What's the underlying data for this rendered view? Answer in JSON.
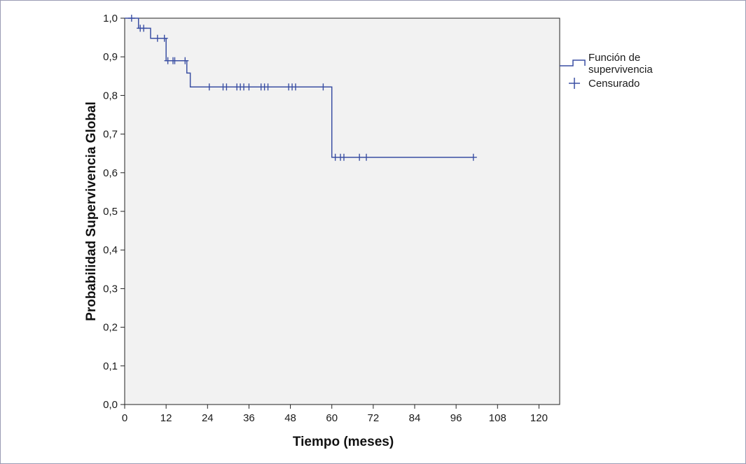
{
  "chart_data": {
    "type": "line",
    "subtype": "kaplan-meier-step",
    "title": "",
    "xlabel": "Tiempo (meses)",
    "ylabel": "Probabilidad Supervivencia Global",
    "xlim": [
      0,
      126
    ],
    "ylim": [
      0,
      1.0
    ],
    "x_ticks": [
      0,
      12,
      24,
      36,
      48,
      60,
      72,
      84,
      96,
      108,
      120
    ],
    "x_tick_labels": [
      "0",
      "12",
      "24",
      "36",
      "48",
      "60",
      "72",
      "84",
      "96",
      "108",
      "120"
    ],
    "y_ticks": [
      0,
      0.1,
      0.2,
      0.3,
      0.4,
      0.5,
      0.6,
      0.7,
      0.8,
      0.9,
      1.0
    ],
    "y_tick_labels": [
      "0,0",
      "0,1",
      "0,2",
      "0,3",
      "0,4",
      "0,5",
      "0,6",
      "0,7",
      "0,8",
      "0,9",
      "1,0"
    ],
    "grid": false,
    "legend_position": "right-top",
    "series": [
      {
        "name": "Función de supervivencia",
        "color": "#3a4fa3",
        "steps": [
          {
            "x": 0,
            "y": 1.0
          },
          {
            "x": 4,
            "y": 0.974
          },
          {
            "x": 7.5,
            "y": 0.948
          },
          {
            "x": 12,
            "y": 0.89
          },
          {
            "x": 18,
            "y": 0.858
          },
          {
            "x": 19,
            "y": 0.822
          },
          {
            "x": 60,
            "y": 0.64
          },
          {
            "x": 101,
            "y": 0.64
          }
        ]
      },
      {
        "name": "Censurado",
        "color": "#3a4fa3",
        "marker": "plus",
        "points": [
          {
            "x": 2,
            "y": 1.0
          },
          {
            "x": 4.5,
            "y": 0.974
          },
          {
            "x": 5.5,
            "y": 0.974
          },
          {
            "x": 9.5,
            "y": 0.948
          },
          {
            "x": 11.5,
            "y": 0.948
          },
          {
            "x": 12.5,
            "y": 0.89
          },
          {
            "x": 14,
            "y": 0.89
          },
          {
            "x": 14.5,
            "y": 0.89
          },
          {
            "x": 17.5,
            "y": 0.89
          },
          {
            "x": 24.5,
            "y": 0.822
          },
          {
            "x": 28.5,
            "y": 0.822
          },
          {
            "x": 29.5,
            "y": 0.822
          },
          {
            "x": 32.5,
            "y": 0.822
          },
          {
            "x": 33.5,
            "y": 0.822
          },
          {
            "x": 34.5,
            "y": 0.822
          },
          {
            "x": 36,
            "y": 0.822
          },
          {
            "x": 39.5,
            "y": 0.822
          },
          {
            "x": 40.5,
            "y": 0.822
          },
          {
            "x": 41.5,
            "y": 0.822
          },
          {
            "x": 47.5,
            "y": 0.822
          },
          {
            "x": 48.5,
            "y": 0.822
          },
          {
            "x": 49.5,
            "y": 0.822
          },
          {
            "x": 57.5,
            "y": 0.822
          },
          {
            "x": 61,
            "y": 0.64
          },
          {
            "x": 62.5,
            "y": 0.64
          },
          {
            "x": 63.5,
            "y": 0.64
          },
          {
            "x": 68,
            "y": 0.64
          },
          {
            "x": 70,
            "y": 0.64
          },
          {
            "x": 101,
            "y": 0.64
          }
        ]
      }
    ],
    "legend": {
      "entries": [
        {
          "label_line1": "Función de",
          "label_line2": "supervivencia"
        },
        {
          "label_line1": "Censurado"
        }
      ]
    }
  },
  "colors": {
    "plot_background": "#f2f2f2",
    "line": "#3a4fa3",
    "frame_border": "#9a9cb4"
  }
}
